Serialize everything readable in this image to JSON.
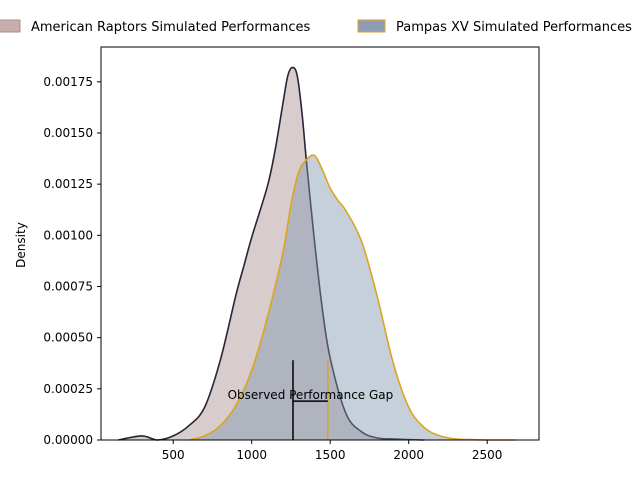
{
  "chart_data": {
    "type": "area",
    "title": "",
    "xlabel": "",
    "ylabel": "Density",
    "xlim": [
      40,
      2830
    ],
    "ylim": [
      0,
      0.00192
    ],
    "x_ticks": [
      500,
      1000,
      1500,
      2000,
      2500
    ],
    "y_ticks": [
      0,
      0.00025,
      0.0005,
      0.00075,
      0.001,
      0.00125,
      0.0015,
      0.00175
    ],
    "x_tick_labels": [
      "500",
      "1000",
      "1500",
      "2000",
      "2500"
    ],
    "y_tick_labels": [
      "0.00000",
      "0.00025",
      "0.00050",
      "0.00075",
      "0.00100",
      "0.00125",
      "0.00150",
      "0.00175"
    ],
    "legend_position": "top-center, outside",
    "grid": false,
    "series": [
      {
        "name": "American Raptors Simulated Performances",
        "fill_color": "#a98f8f",
        "line_color": "#2a2438",
        "fill_opacity": 0.45,
        "x": [
          150,
          300,
          400,
          500,
          600,
          700,
          800,
          900,
          950,
          1000,
          1100,
          1150,
          1200,
          1230,
          1260,
          1290,
          1320,
          1350,
          1400,
          1450,
          1500,
          1600,
          1700,
          1800,
          1900,
          2000,
          2100
        ],
        "y": [
          0,
          2e-05,
          0,
          2e-05,
          7e-05,
          0.00016,
          0.00039,
          0.00071,
          0.00085,
          0.00099,
          0.00124,
          0.00142,
          0.00165,
          0.00178,
          0.00182,
          0.00178,
          0.0016,
          0.00135,
          0.00097,
          0.00064,
          0.0004,
          0.00013,
          4e-05,
          1e-05,
          5e-06,
          2e-06,
          0
        ]
      },
      {
        "name": "Pampas XV Simulated Performances",
        "fill_color": "#7f96b0",
        "line_color": "#daa520",
        "fill_opacity": 0.45,
        "x": [
          600,
          700,
          800,
          900,
          1000,
          1100,
          1200,
          1250,
          1300,
          1350,
          1400,
          1450,
          1500,
          1550,
          1600,
          1700,
          1800,
          1900,
          2000,
          2100,
          2200,
          2300,
          2400,
          2500,
          2680
        ],
        "y": [
          0,
          2e-05,
          7e-05,
          0.00017,
          0.00034,
          0.0006,
          0.00092,
          0.00115,
          0.00131,
          0.00137,
          0.00139,
          0.00132,
          0.00123,
          0.00117,
          0.00112,
          0.00097,
          0.0007,
          0.00038,
          0.00016,
          6e-05,
          2e-05,
          5e-06,
          2e-06,
          0,
          0
        ]
      }
    ],
    "annotations": [
      {
        "text": "Observed Performance Gap",
        "x1": 1263,
        "x2": 1485,
        "y": 0.00019,
        "marker_top": 0.00039,
        "line1_color": "#000000",
        "line2_color": "#daa520"
      }
    ]
  }
}
